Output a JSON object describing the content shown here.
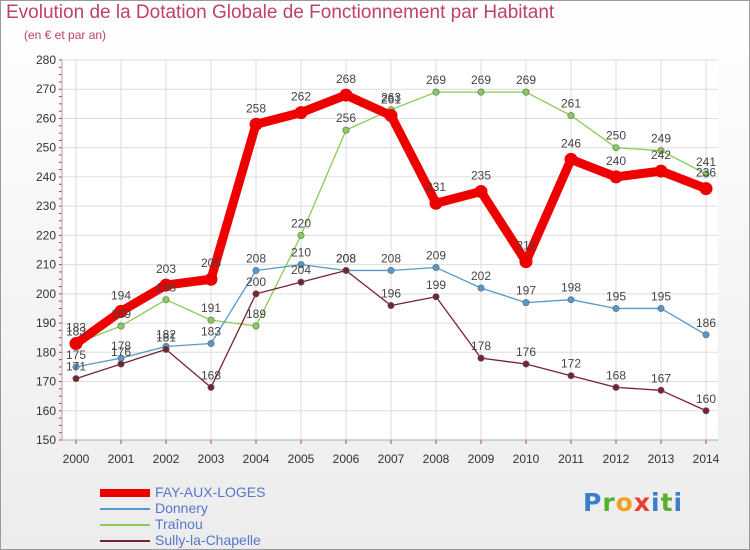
{
  "chart_data": {
    "type": "line",
    "title": "Evolution de la Dotation Globale de Fonctionnement par Habitant",
    "subtitle": "(en € et par an)",
    "xlabel": "",
    "ylabel": "",
    "x": [
      "2000",
      "2001",
      "2002",
      "2003",
      "2004",
      "2005",
      "2006",
      "2007",
      "2008",
      "2009",
      "2010",
      "2011",
      "2012",
      "2013",
      "2014"
    ],
    "ylim": [
      150,
      280
    ],
    "yticks": [
      150,
      160,
      170,
      180,
      190,
      200,
      210,
      220,
      230,
      240,
      250,
      260,
      270,
      280
    ],
    "grid": true,
    "legend_position": "bottom-left",
    "series": [
      {
        "name": "Traînou",
        "color": "#88cc55",
        "values": [
          183,
          189,
          198,
          191,
          189,
          220,
          256,
          263,
          269,
          269,
          269,
          261,
          250,
          249,
          241
        ]
      },
      {
        "name": "Donnery",
        "color": "#5599cc",
        "values": [
          175,
          178,
          182,
          183,
          208,
          210,
          208,
          208,
          209,
          202,
          197,
          198,
          195,
          195,
          186
        ]
      },
      {
        "name": "Sully-la-Chapelle",
        "color": "#772233",
        "values": [
          171,
          176,
          181,
          168,
          200,
          204,
          208,
          196,
          199,
          178,
          176,
          172,
          168,
          167,
          160
        ]
      },
      {
        "name": "FAY-AUX-LOGES",
        "color": "#ee0000",
        "values": [
          183,
          194,
          203,
          205,
          258,
          262,
          268,
          261,
          231,
          235,
          211,
          246,
          240,
          242,
          236
        ]
      }
    ]
  },
  "legend": {
    "items": [
      {
        "label": "FAY-AUX-LOGES",
        "color": "#ee0000"
      },
      {
        "label": "Donnery",
        "color": "#5599cc"
      },
      {
        "label": "Traînou",
        "color": "#88cc55"
      },
      {
        "label": "Sully-la-Chapelle",
        "color": "#772233"
      }
    ]
  },
  "logo": {
    "p": "P",
    "r": "r",
    "o": "o",
    "x": "x",
    "i": "i",
    "t": "t",
    "i2": "i"
  }
}
